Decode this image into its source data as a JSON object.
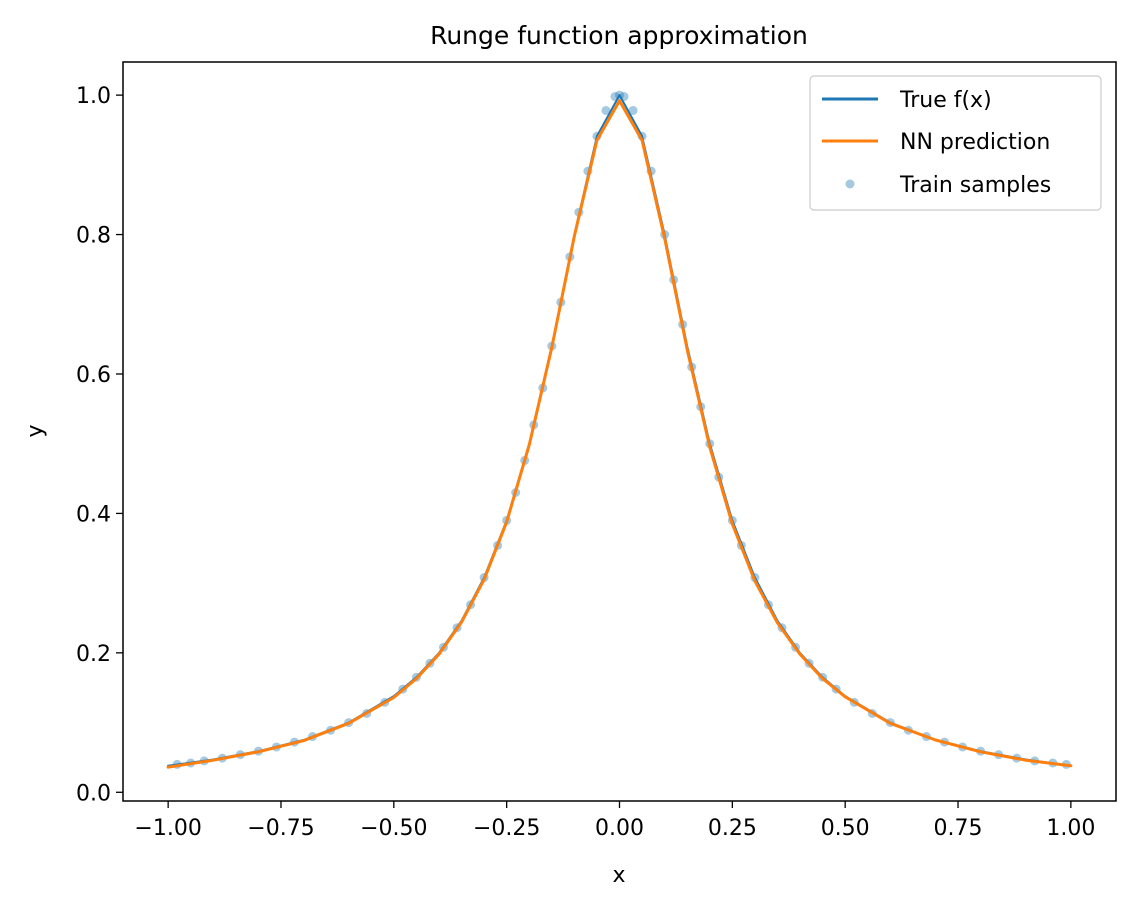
{
  "chart_data": {
    "type": "line",
    "title": "Runge function approximation",
    "xlabel": "x",
    "ylabel": "y",
    "xlim": [
      -1.1,
      1.1
    ],
    "ylim": [
      -0.0125,
      1.0475
    ],
    "x_ticks": [
      -1.0,
      -0.75,
      -0.5,
      -0.25,
      0.0,
      0.25,
      0.5,
      0.75,
      1.0
    ],
    "x_tick_labels": [
      "−1.00",
      "−0.75",
      "−0.50",
      "−0.25",
      "0.00",
      "0.25",
      "0.50",
      "0.75",
      "1.00"
    ],
    "y_ticks": [
      0.0,
      0.2,
      0.4,
      0.6,
      0.8,
      1.0
    ],
    "y_tick_labels": [
      "0.0",
      "0.2",
      "0.4",
      "0.6",
      "0.8",
      "1.0"
    ],
    "grid": false,
    "legend_position": "top-right",
    "series": [
      {
        "name": "True f(x)",
        "kind": "line",
        "color": "#1f77b4",
        "x": [
          -1.0,
          -0.9,
          -0.8,
          -0.7,
          -0.6,
          -0.5,
          -0.45,
          -0.4,
          -0.35,
          -0.3,
          -0.25,
          -0.2,
          -0.15,
          -0.1,
          -0.05,
          0.0,
          0.05,
          0.1,
          0.15,
          0.2,
          0.25,
          0.3,
          0.35,
          0.4,
          0.45,
          0.5,
          0.6,
          0.7,
          0.8,
          0.9,
          1.0
        ],
        "y": [
          0.038,
          0.047,
          0.059,
          0.075,
          0.1,
          0.138,
          0.165,
          0.2,
          0.246,
          0.308,
          0.39,
          0.5,
          0.64,
          0.8,
          0.941,
          1.0,
          0.941,
          0.8,
          0.64,
          0.5,
          0.39,
          0.308,
          0.246,
          0.2,
          0.165,
          0.138,
          0.1,
          0.075,
          0.059,
          0.047,
          0.038
        ]
      },
      {
        "name": "NN prediction",
        "kind": "line",
        "color": "#ff7f0e",
        "x": [
          -1.0,
          -0.9,
          -0.8,
          -0.7,
          -0.6,
          -0.5,
          -0.45,
          -0.4,
          -0.35,
          -0.3,
          -0.25,
          -0.2,
          -0.15,
          -0.1,
          -0.05,
          0.0,
          0.05,
          0.1,
          0.15,
          0.2,
          0.25,
          0.3,
          0.35,
          0.4,
          0.45,
          0.5,
          0.6,
          0.7,
          0.8,
          0.9,
          1.0
        ],
        "y": [
          0.036,
          0.046,
          0.058,
          0.074,
          0.099,
          0.136,
          0.163,
          0.198,
          0.244,
          0.305,
          0.388,
          0.498,
          0.638,
          0.798,
          0.935,
          0.992,
          0.935,
          0.795,
          0.635,
          0.495,
          0.385,
          0.303,
          0.243,
          0.198,
          0.163,
          0.137,
          0.099,
          0.075,
          0.058,
          0.046,
          0.038
        ]
      },
      {
        "name": "Train samples",
        "kind": "scatter",
        "color": "#1f77b4",
        "x": [
          -0.98,
          -0.95,
          -0.92,
          -0.88,
          -0.84,
          -0.8,
          -0.76,
          -0.72,
          -0.68,
          -0.64,
          -0.6,
          -0.56,
          -0.52,
          -0.48,
          -0.45,
          -0.42,
          -0.39,
          -0.36,
          -0.33,
          -0.3,
          -0.27,
          -0.25,
          -0.23,
          -0.21,
          -0.19,
          -0.17,
          -0.15,
          -0.13,
          -0.11,
          -0.09,
          -0.07,
          -0.05,
          -0.03,
          -0.01,
          0.0,
          0.01,
          0.03,
          0.05,
          0.07,
          0.1,
          0.12,
          0.14,
          0.16,
          0.18,
          0.2,
          0.22,
          0.25,
          0.27,
          0.3,
          0.33,
          0.36,
          0.39,
          0.42,
          0.45,
          0.48,
          0.52,
          0.56,
          0.6,
          0.64,
          0.68,
          0.72,
          0.76,
          0.8,
          0.84,
          0.88,
          0.92,
          0.96,
          0.99
        ],
        "y": [
          0.04,
          0.042,
          0.045,
          0.049,
          0.054,
          0.059,
          0.065,
          0.072,
          0.08,
          0.089,
          0.1,
          0.113,
          0.129,
          0.148,
          0.165,
          0.185,
          0.208,
          0.236,
          0.269,
          0.308,
          0.354,
          0.39,
          0.43,
          0.476,
          0.527,
          0.58,
          0.64,
          0.703,
          0.768,
          0.832,
          0.891,
          0.941,
          0.978,
          0.998,
          1.0,
          0.998,
          0.978,
          0.941,
          0.891,
          0.8,
          0.735,
          0.671,
          0.61,
          0.553,
          0.5,
          0.452,
          0.39,
          0.354,
          0.308,
          0.269,
          0.236,
          0.208,
          0.185,
          0.165,
          0.148,
          0.129,
          0.113,
          0.1,
          0.089,
          0.08,
          0.072,
          0.065,
          0.059,
          0.054,
          0.049,
          0.045,
          0.042,
          0.04
        ]
      }
    ]
  }
}
